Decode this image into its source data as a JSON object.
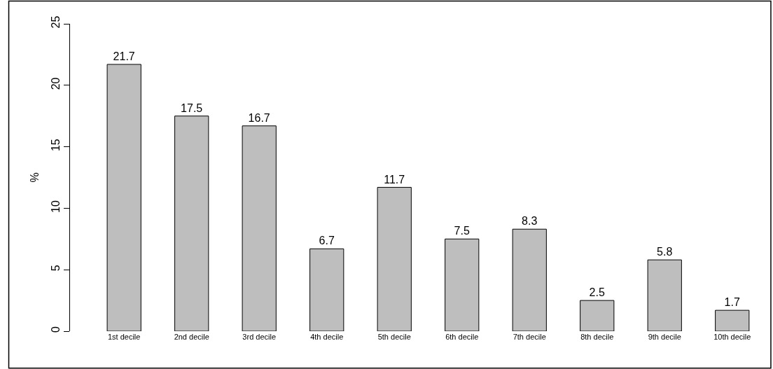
{
  "chart_data": {
    "type": "bar",
    "ylabel": "%",
    "categories": [
      "1st decile",
      "2nd decile",
      "3rd decile",
      "4th decile",
      "5th decile",
      "6th decile",
      "7th decile",
      "8th decile",
      "9th decile",
      "10th decile"
    ],
    "values": [
      21.7,
      17.5,
      16.7,
      6.7,
      11.7,
      7.5,
      8.3,
      2.5,
      5.8,
      1.7
    ],
    "color": "#bebebe",
    "ylim": [
      0,
      25
    ],
    "yticks": [
      0,
      5,
      10,
      15,
      20,
      25
    ],
    "data_labels": true
  }
}
